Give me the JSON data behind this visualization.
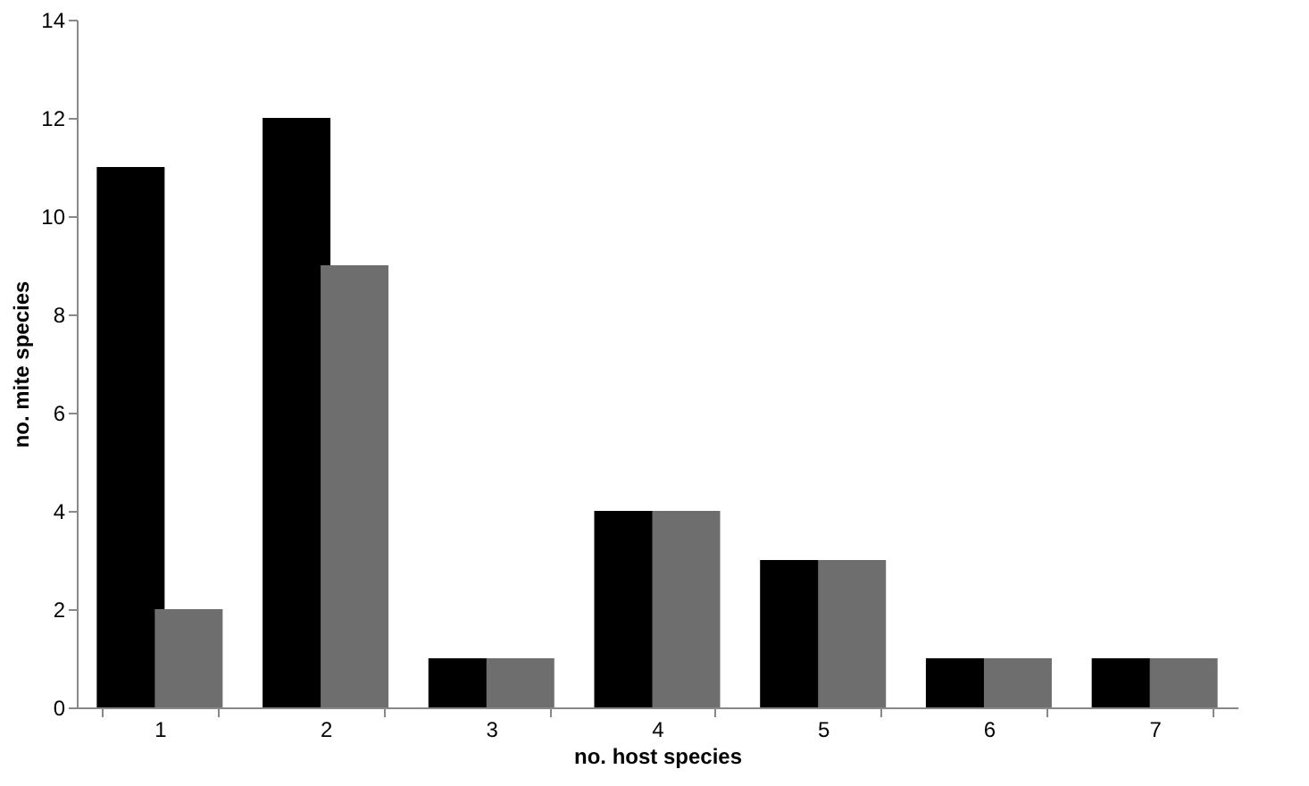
{
  "chart_data": {
    "type": "bar",
    "xlabel": "no. host species",
    "ylabel": "no. mite species",
    "categories": [
      "1",
      "2",
      "3",
      "4",
      "5",
      "6",
      "7"
    ],
    "series": [
      {
        "color": "#000000",
        "values": [
          11,
          12,
          1,
          4,
          3,
          1,
          1
        ]
      },
      {
        "color": "#6e6e6e",
        "values": [
          2,
          9,
          1,
          4,
          3,
          1,
          1
        ]
      }
    ],
    "ylim": [
      0,
      14
    ],
    "yticks": [
      0,
      2,
      4,
      6,
      8,
      10,
      12,
      14
    ],
    "grid": false
  }
}
